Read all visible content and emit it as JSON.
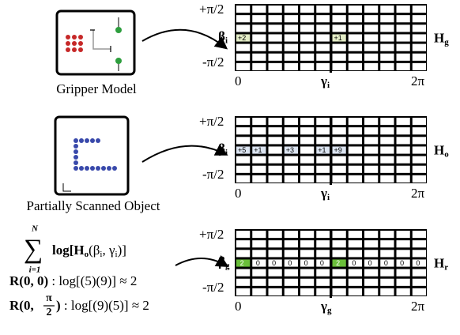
{
  "gripper": {
    "label": "Gripper Model"
  },
  "object": {
    "label": "Partially Scanned Object"
  },
  "formula": {
    "sigma": "∑",
    "upper": "N",
    "lower": "i=1",
    "term": "log[H",
    "term_sub": "o",
    "term_args": "(β",
    "term_a_sub": "i",
    "term_mid": ", γ",
    "term_b_sub": "i",
    "term_end": ")]",
    "r1": "R(0, 0)",
    "r1_rest": " : log[(5)(9)] ≈ 2",
    "r2": "R(0, ",
    "r2_num": "π",
    "r2_den": "2",
    "r2_close": ")",
    "r2_rest": " : log[(9)(5)] ≈ 2"
  },
  "grids": [
    {
      "y_top": "+π/2",
      "y_mid": "β",
      "y_mid_sub": "i",
      "y_bottom": "-π/2",
      "x_left": "0",
      "x_mid": "γ",
      "x_mid_sub": "i",
      "x_right": "2π",
      "name": "H",
      "name_sub": "g",
      "cells": [
        {
          "text": "+2",
          "fill": "#e3ecc6"
        },
        null,
        null,
        null,
        null,
        null,
        {
          "text": "+1",
          "fill": "#e3ecc6"
        },
        null,
        null,
        null,
        null,
        null
      ]
    },
    {
      "y_top": "+π/2",
      "y_mid": "β",
      "y_mid_sub": "i",
      "y_bottom": "-π/2",
      "x_left": "0",
      "x_mid": "γ",
      "x_mid_sub": "i",
      "x_right": "2π",
      "name": "H",
      "name_sub": "o",
      "cells": [
        {
          "text": "+5",
          "fill": "#dbe4f1"
        },
        {
          "text": "+1",
          "fill": "#dbe4f1"
        },
        null,
        {
          "text": "+3",
          "fill": "#dbe4f1"
        },
        null,
        {
          "text": "+1",
          "fill": "#dbe4f1"
        },
        {
          "text": "+9",
          "fill": "#dbe4f1"
        },
        null,
        null,
        null,
        null,
        null
      ]
    },
    {
      "y_top": "+π/2",
      "y_mid": "β",
      "y_mid_sub": "g",
      "y_bottom": "-π/2",
      "x_left": "0",
      "x_mid": "γ",
      "x_mid_sub": "g",
      "x_right": "2π",
      "name": "H",
      "name_sub": "r",
      "cells": [
        {
          "text": "2",
          "fill": "#6abf3a"
        },
        {
          "text": "0",
          "fill": "#ffffff"
        },
        {
          "text": "0",
          "fill": "#ffffff"
        },
        {
          "text": "0",
          "fill": "#ffffff"
        },
        {
          "text": "0",
          "fill": "#ffffff"
        },
        {
          "text": "0",
          "fill": "#ffffff"
        },
        {
          "text": "2",
          "fill": "#6abf3a"
        },
        {
          "text": "0",
          "fill": "#ffffff"
        },
        {
          "text": "0",
          "fill": "#ffffff"
        },
        {
          "text": "0",
          "fill": "#ffffff"
        },
        {
          "text": "0",
          "fill": "#ffffff"
        },
        {
          "text": "0",
          "fill": "#ffffff"
        }
      ]
    }
  ]
}
